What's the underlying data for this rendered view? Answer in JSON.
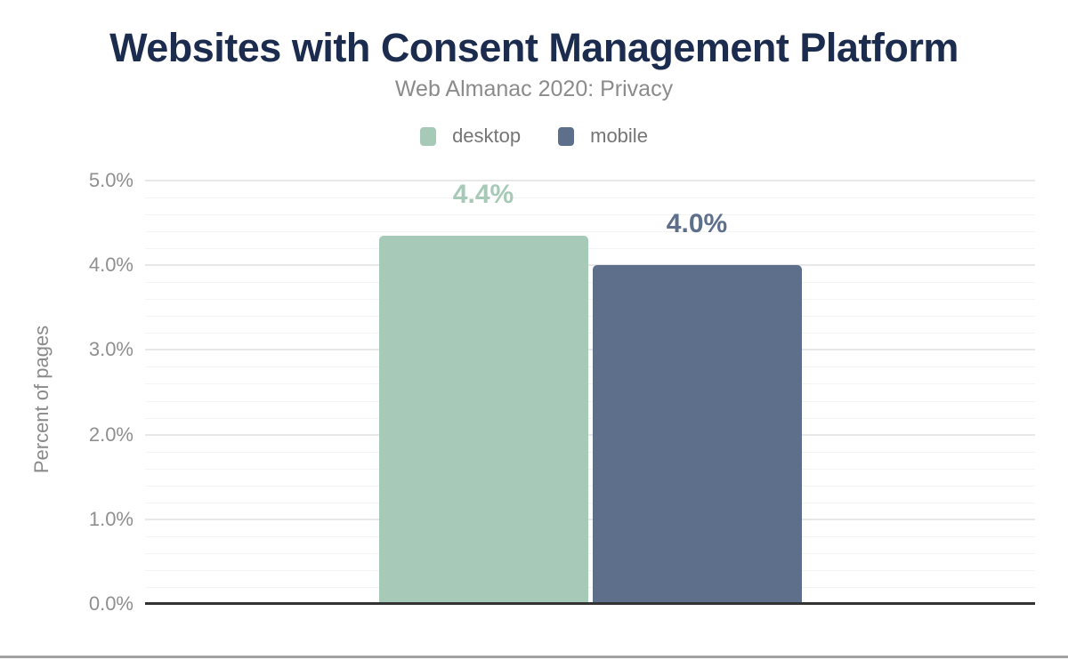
{
  "header": {
    "title": "Websites with Consent Management Platform",
    "subtitle": "Web Almanac 2020: Privacy"
  },
  "chart_data": {
    "type": "bar",
    "title": "Websites with Consent Management Platform",
    "subtitle": "Web Almanac 2020: Privacy",
    "categories": [
      "desktop",
      "mobile"
    ],
    "series": [
      {
        "name": "desktop",
        "value": 4.4,
        "label": "4.4%",
        "color": "#a6c9b8"
      },
      {
        "name": "mobile",
        "value": 4.0,
        "label": "4.0%",
        "color": "#5e6f8c"
      }
    ],
    "xlabel": "",
    "ylabel": "Percent of pages",
    "ylim": [
      0,
      5
    ],
    "minor_step": 0.2,
    "grid": "horizontal",
    "legend_position": "top",
    "yticks": [
      {
        "value": 0,
        "label": "0.0%"
      },
      {
        "value": 1,
        "label": "1.0%"
      },
      {
        "value": 2,
        "label": "2.0%"
      },
      {
        "value": 3,
        "label": "3.0%"
      },
      {
        "value": 4,
        "label": "4.0%"
      },
      {
        "value": 5,
        "label": "5.0%"
      }
    ]
  },
  "colors": {
    "title": "#1b2c4e",
    "subtitle": "#8b8b8b",
    "legend_text": "#757575",
    "axis_title": "#8a8a8a",
    "tick_text": "#8f8f8f",
    "grid_major": "#e8e8e8",
    "grid_minor": "#f4f4f4",
    "axis_line": "#333333",
    "bottom_divider": "#a2a2a2",
    "desktop": "#a6c9b8",
    "mobile": "#5e6f8c"
  }
}
